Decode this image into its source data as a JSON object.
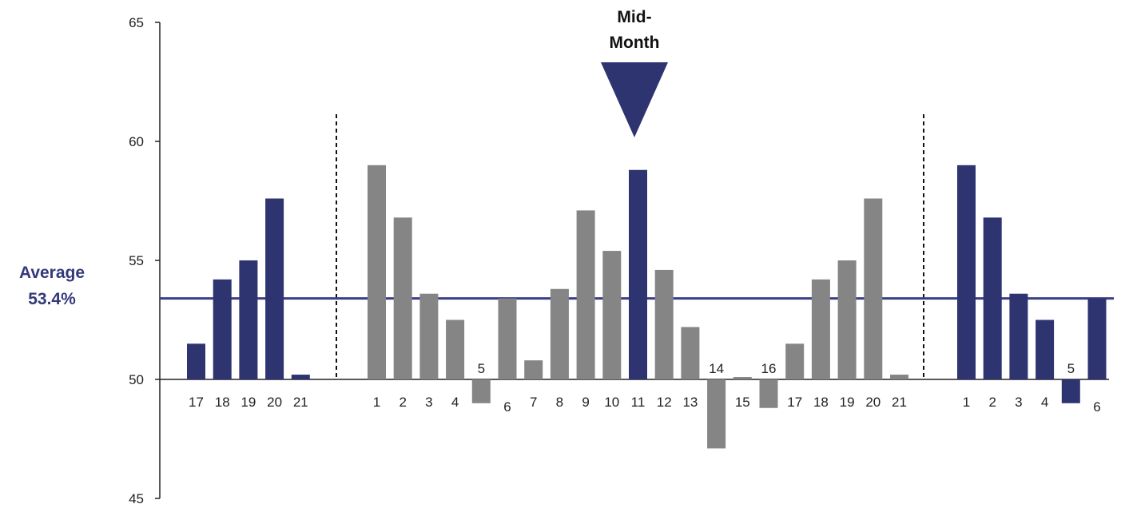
{
  "chart_data": {
    "type": "bar",
    "ylim": [
      45,
      65
    ],
    "yticks": [
      "45",
      "50",
      "55",
      "60",
      "65"
    ],
    "baseline": 50,
    "average": {
      "value": 53.4,
      "label_line1": "Average",
      "label_line2": "53.4%"
    },
    "marker": {
      "label_line1": "Mid-",
      "label_line2": "Month",
      "category_index": 15
    },
    "colors": {
      "highlight": "#2e3470",
      "normal": "#858585",
      "average_line": "#3a3f86"
    },
    "groups": [
      {
        "bars": [
          {
            "label": "17",
            "value": 51.5,
            "highlight": true
          },
          {
            "label": "18",
            "value": 54.2,
            "highlight": true
          },
          {
            "label": "19",
            "value": 55.0,
            "highlight": true
          },
          {
            "label": "20",
            "value": 57.6,
            "highlight": true
          },
          {
            "label": "21",
            "value": 50.2,
            "highlight": true
          }
        ]
      },
      {
        "bars": [
          {
            "label": "1",
            "value": 59.0,
            "highlight": false
          },
          {
            "label": "2",
            "value": 56.8,
            "highlight": false
          },
          {
            "label": "3",
            "value": 53.6,
            "highlight": false
          },
          {
            "label": "4",
            "value": 52.5,
            "highlight": false
          },
          {
            "label": "5",
            "value": 49.0,
            "highlight": false
          },
          {
            "label": "6",
            "value": 53.4,
            "highlight": false
          },
          {
            "label": "7",
            "value": 50.8,
            "highlight": false
          },
          {
            "label": "8",
            "value": 53.8,
            "highlight": false
          },
          {
            "label": "9",
            "value": 57.1,
            "highlight": false
          },
          {
            "label": "10",
            "value": 55.4,
            "highlight": false
          },
          {
            "label": "11",
            "value": 58.8,
            "highlight": true
          },
          {
            "label": "12",
            "value": 54.6,
            "highlight": false
          },
          {
            "label": "13",
            "value": 52.2,
            "highlight": false
          },
          {
            "label": "14",
            "value": 47.1,
            "highlight": false
          },
          {
            "label": "15",
            "value": 50.1,
            "highlight": false
          },
          {
            "label": "16",
            "value": 48.8,
            "highlight": false
          },
          {
            "label": "17",
            "value": 51.5,
            "highlight": false
          },
          {
            "label": "18",
            "value": 54.2,
            "highlight": false
          },
          {
            "label": "19",
            "value": 55.0,
            "highlight": false
          },
          {
            "label": "20",
            "value": 57.6,
            "highlight": false
          },
          {
            "label": "21",
            "value": 50.2,
            "highlight": false
          }
        ]
      },
      {
        "bars": [
          {
            "label": "1",
            "value": 59.0,
            "highlight": true
          },
          {
            "label": "2",
            "value": 56.8,
            "highlight": true
          },
          {
            "label": "3",
            "value": 53.6,
            "highlight": true
          },
          {
            "label": "4",
            "value": 52.5,
            "highlight": true
          },
          {
            "label": "5",
            "value": 49.0,
            "highlight": true
          },
          {
            "label": "6",
            "value": 53.4,
            "highlight": true
          }
        ]
      }
    ]
  }
}
